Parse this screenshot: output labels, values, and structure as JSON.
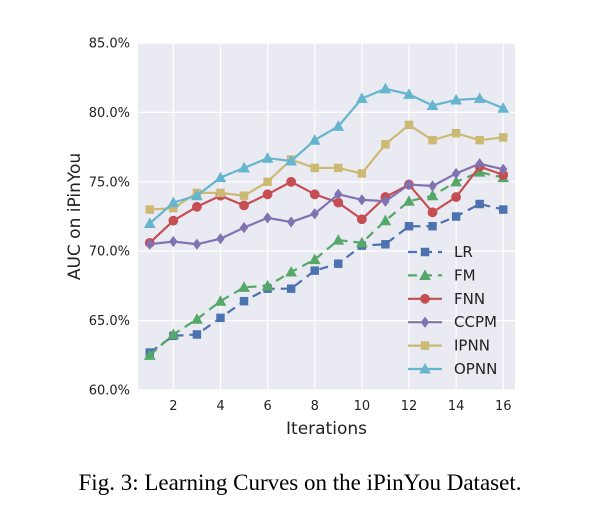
{
  "caption": "Fig. 3: Learning Curves on the iPinYou Dataset.",
  "chart_data": {
    "type": "line",
    "title": "",
    "xlabel": "Iterations",
    "ylabel": "AUC on iPinYou",
    "xlim": [
      0.5,
      16.5
    ],
    "ylim": [
      60,
      85
    ],
    "xticks": [
      2,
      4,
      6,
      8,
      10,
      12,
      14,
      16
    ],
    "xtick_labels": [
      "2",
      "4",
      "6",
      "8",
      "10",
      "12",
      "14",
      "16"
    ],
    "yticks": [
      60,
      65,
      70,
      75,
      80,
      85
    ],
    "ytick_labels": [
      "60.0%",
      "65.0%",
      "70.0%",
      "75.0%",
      "80.0%",
      "85.0%"
    ],
    "grid": true,
    "background": "#eaeaf2",
    "legend_position": "lower-right",
    "x": [
      1,
      2,
      3,
      4,
      5,
      6,
      7,
      8,
      9,
      10,
      11,
      12,
      13,
      14,
      15,
      16
    ],
    "series": [
      {
        "name": "LR",
        "color": "#4c72b0",
        "marker": "square",
        "dashed": true,
        "values": [
          62.7,
          63.9,
          64.0,
          65.2,
          66.4,
          67.3,
          67.3,
          68.6,
          69.1,
          70.4,
          70.5,
          71.8,
          71.8,
          72.5,
          73.4,
          73.0
        ]
      },
      {
        "name": "FM",
        "color": "#55a868",
        "marker": "triangle",
        "dashed": true,
        "values": [
          62.5,
          64.0,
          65.1,
          66.4,
          67.4,
          67.5,
          68.5,
          69.4,
          70.8,
          70.6,
          72.2,
          73.6,
          74.0,
          75.0,
          75.7,
          75.3
        ]
      },
      {
        "name": "FNN",
        "color": "#c44e52",
        "marker": "circle",
        "dashed": false,
        "values": [
          70.6,
          72.2,
          73.2,
          74.0,
          73.3,
          74.1,
          75.0,
          74.1,
          73.5,
          72.3,
          73.9,
          74.8,
          72.8,
          73.9,
          76.1,
          75.5
        ]
      },
      {
        "name": "CCPM",
        "color": "#8172b2",
        "marker": "diamond",
        "dashed": false,
        "values": [
          70.5,
          70.7,
          70.5,
          70.9,
          71.7,
          72.4,
          72.1,
          72.7,
          74.1,
          73.7,
          73.6,
          74.8,
          74.7,
          75.6,
          76.3,
          75.9
        ]
      },
      {
        "name": "IPNN",
        "color": "#ccb974",
        "marker": "square",
        "dashed": false,
        "values": [
          73.0,
          73.1,
          74.2,
          74.2,
          74.0,
          75.0,
          76.6,
          76.0,
          76.0,
          75.6,
          77.7,
          79.1,
          78.0,
          78.5,
          78.0,
          78.2
        ]
      },
      {
        "name": "OPNN",
        "color": "#64b5cd",
        "marker": "triangle",
        "dashed": false,
        "values": [
          72.0,
          73.5,
          74.0,
          75.3,
          76.0,
          76.7,
          76.5,
          78.0,
          79.0,
          81.0,
          81.7,
          81.3,
          80.5,
          80.9,
          81.0,
          80.3
        ]
      }
    ]
  }
}
